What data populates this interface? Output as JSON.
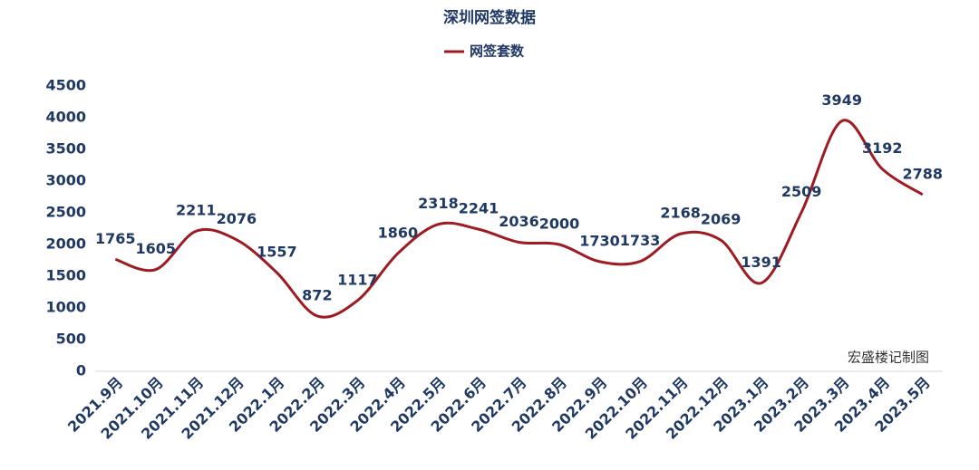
{
  "chart_data": {
    "type": "line",
    "title": "深圳网签数据",
    "annotation": "宏盛楼记制图",
    "categories": [
      "2021.9月",
      "2021.10月",
      "2021.11月",
      "2021.12月",
      "2022.1月",
      "2022.2月",
      "2022.3月",
      "2022.4月",
      "2022.5月",
      "2022.6月",
      "2022.7月",
      "2022.8月",
      "2022.9月",
      "2022.10月",
      "2022.11月",
      "2022.12月",
      "2023.1月",
      "2023.2月",
      "2023.3月",
      "2023.4月",
      "2023.5月"
    ],
    "series": [
      {
        "name": "网签套数",
        "color": "#9e1b22",
        "values": [
          1765,
          1605,
          2211,
          2076,
          1557,
          872,
          1117,
          1860,
          2318,
          2241,
          2036,
          2000,
          1730,
          1733,
          2168,
          2069,
          1391,
          2509,
          3949,
          3192,
          2788
        ]
      }
    ],
    "ylim": [
      0,
      4500
    ],
    "yticks": [
      0,
      500,
      1000,
      1500,
      2000,
      2500,
      3000,
      3500,
      4000,
      4500
    ],
    "grid": false,
    "smooth": true
  }
}
